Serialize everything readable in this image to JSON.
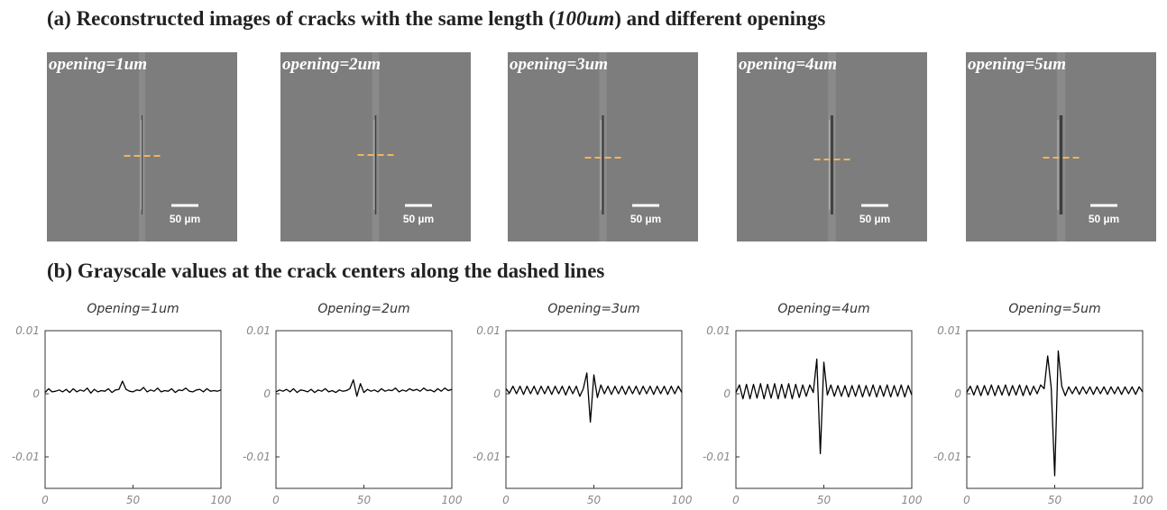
{
  "heading_a": {
    "before": "(a) Reconstructed images of cracks with the same length (",
    "italic": "100um",
    "after": ") and different openings"
  },
  "heading_b": "(b)  Grayscale values at the crack centers along the dashed lines",
  "panels": [
    {
      "label": "opening=1um",
      "scale_bar": "50 µm"
    },
    {
      "label": "opening=2um",
      "scale_bar": "50 µm"
    },
    {
      "label": "opening=3um",
      "scale_bar": "50 µm"
    },
    {
      "label": "opening=4um",
      "scale_bar": "50 µm"
    },
    {
      "label": "opening=5um",
      "scale_bar": "50 µm"
    }
  ],
  "chart_data": [
    {
      "type": "line",
      "title": "Opening=1um",
      "color": "#000000",
      "xlim": [
        0,
        100
      ],
      "ylim": [
        -0.015,
        0.01
      ],
      "xticks": [
        0,
        50,
        100
      ],
      "yticks": [
        0.01,
        0,
        -0.01
      ],
      "x": [
        0,
        2,
        4,
        6,
        8,
        10,
        12,
        14,
        16,
        18,
        20,
        22,
        24,
        26,
        28,
        30,
        32,
        34,
        36,
        38,
        40,
        42,
        44,
        46,
        48,
        50,
        52,
        54,
        56,
        58,
        60,
        62,
        64,
        66,
        68,
        70,
        72,
        74,
        76,
        78,
        80,
        82,
        84,
        86,
        88,
        90,
        92,
        94,
        96,
        98,
        100
      ],
      "values": [
        0.0002,
        0.0008,
        0.0003,
        0.0004,
        0.0006,
        0.0003,
        0.0007,
        0.0002,
        0.0008,
        0.0003,
        0.0006,
        0.0004,
        0.0009,
        0.0001,
        0.0007,
        0.0003,
        0.0005,
        0.0004,
        0.0008,
        0.0002,
        0.0006,
        0.0007,
        0.002,
        0.0007,
        0.0004,
        0.0003,
        0.0006,
        0.0005,
        0.001,
        0.0003,
        0.0006,
        0.0004,
        0.0009,
        0.0003,
        0.0005,
        0.0004,
        0.0008,
        0.0002,
        0.0006,
        0.0005,
        0.0009,
        0.0004,
        0.0003,
        0.0006,
        0.0007,
        0.0003,
        0.0008,
        0.0004,
        0.0005,
        0.0004,
        0.0006
      ]
    },
    {
      "type": "line",
      "title": "Opening=2um",
      "color": "#000000",
      "xlim": [
        0,
        100
      ],
      "ylim": [
        -0.015,
        0.01
      ],
      "xticks": [
        0,
        50,
        100
      ],
      "yticks": [
        0.01,
        0,
        -0.01
      ],
      "x": [
        0,
        2,
        4,
        6,
        8,
        10,
        12,
        14,
        16,
        18,
        20,
        22,
        24,
        26,
        28,
        30,
        32,
        34,
        36,
        38,
        40,
        42,
        44,
        46,
        48,
        50,
        52,
        54,
        56,
        58,
        60,
        62,
        64,
        66,
        68,
        70,
        72,
        74,
        76,
        78,
        80,
        82,
        84,
        86,
        88,
        90,
        92,
        94,
        96,
        98,
        100
      ],
      "values": [
        0.0003,
        0.0006,
        0.0004,
        0.0007,
        0.0003,
        0.0008,
        0.0002,
        0.0006,
        0.0005,
        0.0003,
        0.0007,
        0.0002,
        0.0006,
        0.0004,
        0.0008,
        0.0003,
        0.0005,
        0.0002,
        0.0006,
        0.0004,
        0.0005,
        0.0008,
        0.0022,
        -0.0004,
        0.0016,
        0.0002,
        0.0007,
        0.0004,
        0.0006,
        0.0003,
        0.0008,
        0.0004,
        0.0006,
        0.0005,
        0.0009,
        0.0003,
        0.0006,
        0.0004,
        0.0008,
        0.0005,
        0.0007,
        0.0004,
        0.0009,
        0.0005,
        0.0006,
        0.0003,
        0.0008,
        0.0004,
        0.0009,
        0.0005,
        0.0007
      ]
    },
    {
      "type": "line",
      "title": "Opening=3um",
      "color": "#000000",
      "xlim": [
        0,
        100
      ],
      "ylim": [
        -0.015,
        0.01
      ],
      "xticks": [
        0,
        50,
        100
      ],
      "yticks": [
        0.01,
        0,
        -0.01
      ],
      "x": [
        0,
        2,
        4,
        6,
        8,
        10,
        12,
        14,
        16,
        18,
        20,
        22,
        24,
        26,
        28,
        30,
        32,
        34,
        36,
        38,
        40,
        42,
        44,
        46,
        48,
        50,
        52,
        54,
        56,
        58,
        60,
        62,
        64,
        66,
        68,
        70,
        72,
        74,
        76,
        78,
        80,
        82,
        84,
        86,
        88,
        90,
        92,
        94,
        96,
        98,
        100
      ],
      "values": [
        0.0008,
        0.0001,
        0.0012,
        0.0,
        0.0012,
        -0.0001,
        0.0012,
        0.0,
        0.0012,
        -0.0001,
        0.0012,
        0.0,
        0.0012,
        -0.0001,
        0.0012,
        0.0,
        0.0012,
        -0.0002,
        0.0012,
        0.0,
        0.0012,
        -0.0004,
        0.0008,
        0.0033,
        -0.0045,
        0.003,
        -0.0006,
        0.0014,
        0.0,
        0.0012,
        -0.0001,
        0.0012,
        0.0,
        0.0012,
        -0.0001,
        0.0012,
        0.0,
        0.0012,
        -0.0001,
        0.0012,
        0.0,
        0.0012,
        -0.0001,
        0.0012,
        0.0,
        0.0012,
        -0.0001,
        0.0012,
        0.0,
        0.0012,
        0.0002
      ]
    },
    {
      "type": "line",
      "title": "Opening=4um",
      "color": "#000000",
      "xlim": [
        0,
        100
      ],
      "ylim": [
        -0.015,
        0.01
      ],
      "xticks": [
        0,
        50,
        100
      ],
      "yticks": [
        0.01,
        0,
        -0.01
      ],
      "x": [
        0,
        2,
        4,
        6,
        8,
        10,
        12,
        14,
        16,
        18,
        20,
        22,
        24,
        26,
        28,
        30,
        32,
        34,
        36,
        38,
        40,
        42,
        44,
        46,
        48,
        50,
        52,
        54,
        56,
        58,
        60,
        62,
        64,
        66,
        68,
        70,
        72,
        74,
        76,
        78,
        80,
        82,
        84,
        86,
        88,
        90,
        92,
        94,
        96,
        98,
        100
      ],
      "values": [
        0.0002,
        0.0014,
        -0.0008,
        0.0015,
        -0.0008,
        0.0015,
        -0.0007,
        0.0016,
        -0.0008,
        0.0015,
        -0.0007,
        0.0016,
        -0.0008,
        0.0015,
        -0.0007,
        0.0016,
        -0.0008,
        0.0015,
        -0.0006,
        0.0014,
        -0.0004,
        0.0014,
        0.0002,
        0.0055,
        -0.0095,
        0.005,
        -0.0002,
        0.0014,
        -0.0004,
        0.0013,
        -0.0004,
        0.0013,
        -0.0005,
        0.0013,
        -0.0004,
        0.0014,
        -0.0005,
        0.0013,
        -0.0004,
        0.0014,
        -0.0005,
        0.0013,
        -0.0004,
        0.0014,
        -0.0005,
        0.0013,
        -0.0004,
        0.0014,
        -0.0005,
        0.0013,
        -0.0002
      ]
    },
    {
      "type": "line",
      "title": "Opening=5um",
      "color": "#000000",
      "xlim": [
        0,
        100
      ],
      "ylim": [
        -0.015,
        0.01
      ],
      "xticks": [
        0,
        50,
        100
      ],
      "yticks": [
        0.01,
        0,
        -0.01
      ],
      "x": [
        0,
        2,
        4,
        6,
        8,
        10,
        12,
        14,
        16,
        18,
        20,
        22,
        24,
        26,
        28,
        30,
        32,
        34,
        36,
        38,
        40,
        42,
        44,
        46,
        48,
        50,
        52,
        54,
        56,
        58,
        60,
        62,
        64,
        66,
        68,
        70,
        72,
        74,
        76,
        78,
        80,
        82,
        84,
        86,
        88,
        90,
        92,
        94,
        96,
        98,
        100
      ],
      "values": [
        0.0002,
        0.0012,
        -0.0002,
        0.0013,
        -0.0003,
        0.0013,
        -0.0002,
        0.0014,
        -0.0003,
        0.0013,
        -0.0002,
        0.0014,
        -0.0003,
        0.0013,
        -0.0002,
        0.0014,
        -0.0003,
        0.0013,
        -0.0002,
        0.0012,
        0.0,
        0.0014,
        0.0008,
        0.006,
        0.001,
        -0.013,
        0.0068,
        0.0012,
        -0.0003,
        0.0011,
        0.0,
        0.0011,
        -0.0001,
        0.0011,
        0.0,
        0.0011,
        -0.0001,
        0.0011,
        0.0,
        0.0011,
        -0.0001,
        0.0011,
        0.0,
        0.0011,
        -0.0001,
        0.0011,
        0.0,
        0.0011,
        -0.0001,
        0.0011,
        0.0003
      ]
    }
  ]
}
